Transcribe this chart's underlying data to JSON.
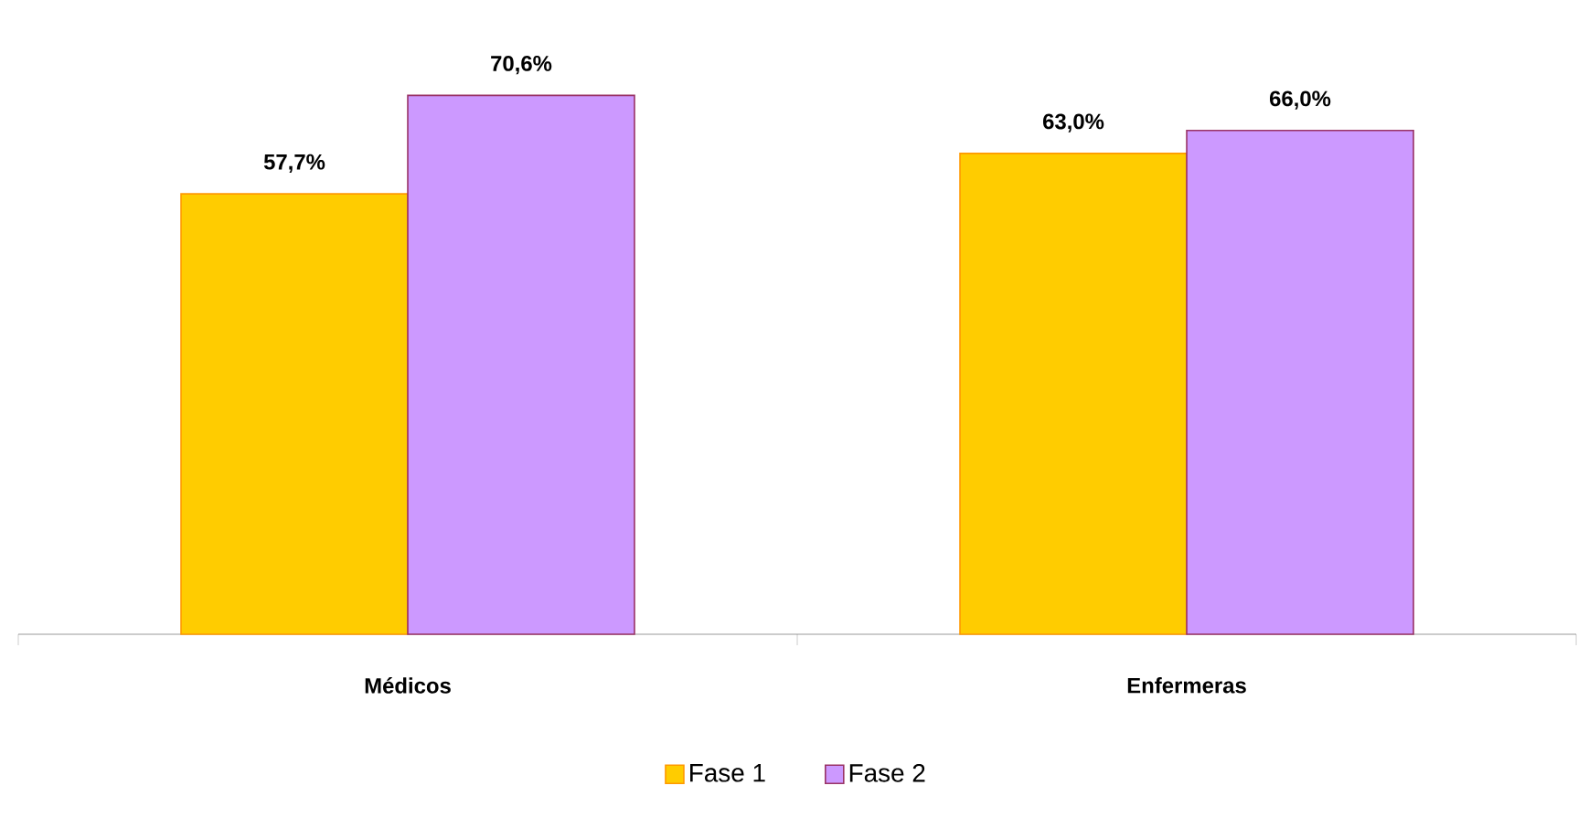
{
  "chart_data": {
    "type": "bar",
    "categories": [
      "Médicos",
      "Enfermeras"
    ],
    "series": [
      {
        "name": "Fase 1",
        "color": "#ffcc00",
        "values": [
          57.7,
          63.0
        ],
        "value_labels": [
          "57,7%",
          "63,0%"
        ]
      },
      {
        "name": "Fase 2",
        "color": "#cc99ff",
        "values": [
          70.6,
          66.0
        ],
        "value_labels": [
          "70,6%",
          "66,0%"
        ]
      }
    ],
    "tick_labels": "x",
    "legend": "bottom"
  }
}
